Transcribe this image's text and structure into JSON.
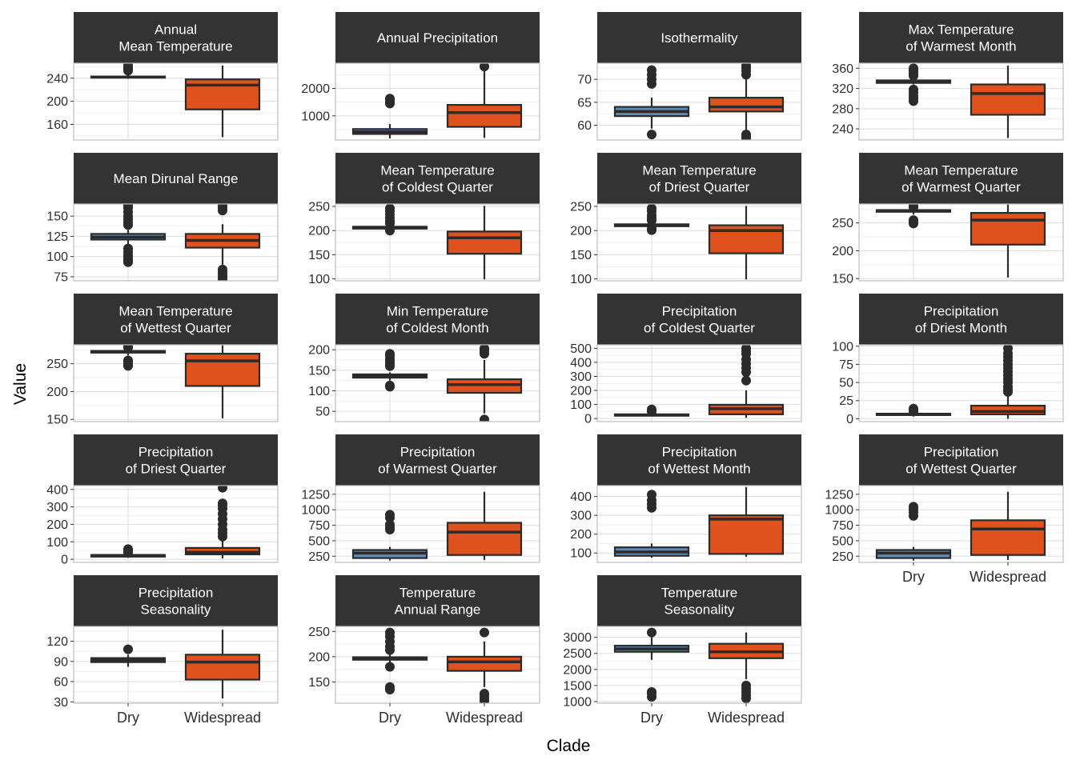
{
  "x_axis_title": "Clade",
  "y_axis_title": "Value",
  "colors": {
    "strip_bg": "#333333",
    "strip_text": "#ffffff",
    "panel_border": "#bdbdbd",
    "grid_major": "#dedede",
    "grid_minor": "#efefef",
    "box_outline": "#2b2b2b",
    "outlier": "#2b2b2b",
    "dry": "#5b8bbd",
    "widespread": "#df521e"
  },
  "chart_data": {
    "type": "boxplot",
    "categories": [
      "Dry",
      "Widespread"
    ],
    "facets": [
      {
        "title": [
          "Annual",
          "Mean Temperature"
        ],
        "ylim": [
          133,
          266
        ],
        "ticks": [
          160,
          200,
          240
        ],
        "minor": [
          140,
          180,
          220,
          260
        ],
        "boxes": [
          {
            "cat": "Dry",
            "q1": 241,
            "median": 242,
            "q3": 243,
            "lo": 239,
            "hi": 246,
            "outliers": [
              253,
              256,
              258,
              260,
              262
            ]
          },
          {
            "cat": "Widespread",
            "q1": 186,
            "median": 228,
            "q3": 238,
            "lo": 138,
            "hi": 262,
            "outliers": []
          }
        ]
      },
      {
        "title": [
          "Annual Precipitation"
        ],
        "ylim": [
          120,
          2920
        ],
        "ticks": [
          1000,
          2000
        ],
        "minor": [
          500,
          1500,
          2500
        ],
        "boxes": [
          {
            "cat": "Dry",
            "q1": 340,
            "median": 420,
            "q3": 520,
            "lo": 180,
            "hi": 700,
            "outliers": [
              1450,
              1520,
              1580,
              1630
            ]
          },
          {
            "cat": "Widespread",
            "q1": 600,
            "median": 1120,
            "q3": 1400,
            "lo": 200,
            "hi": 2800,
            "outliers": [
              2800
            ]
          }
        ]
      },
      {
        "title": [
          "Isothermality"
        ],
        "ylim": [
          56.8,
          73.5
        ],
        "ticks": [
          60,
          65,
          70
        ],
        "minor": [
          62.5,
          67.5,
          72.5
        ],
        "boxes": [
          {
            "cat": "Dry",
            "q1": 62.0,
            "median": 63.0,
            "q3": 64.0,
            "lo": 59.3,
            "hi": 66.0,
            "outliers": [
              58.0,
              69.0,
              70.0,
              71.0,
              72.0
            ]
          },
          {
            "cat": "Widespread",
            "q1": 63.0,
            "median": 64.0,
            "q3": 66.0,
            "lo": 59.0,
            "hi": 70.0,
            "outliers": [
              57.0,
              57.5,
              58.0,
              71.0,
              71.8,
              72.5,
              73.0
            ]
          }
        ]
      },
      {
        "title": [
          "Max Temperature",
          "of Warmest Month"
        ],
        "ylim": [
          218,
          370
        ],
        "ticks": [
          240,
          280,
          320,
          360
        ],
        "minor": [
          220,
          260,
          300,
          340
        ],
        "boxes": [
          {
            "cat": "Dry",
            "q1": 331,
            "median": 334,
            "q3": 336,
            "lo": 328,
            "hi": 340,
            "outliers": [
              295,
              300,
              305,
              312,
              318,
              345,
              348,
              352,
              356,
              360
            ]
          },
          {
            "cat": "Widespread",
            "q1": 268,
            "median": 310,
            "q3": 328,
            "lo": 222,
            "hi": 365,
            "outliers": []
          }
        ]
      },
      {
        "title": [
          "Mean Dirunal Range"
        ],
        "ylim": [
          70,
          165
        ],
        "ticks": [
          75,
          100,
          125,
          150
        ],
        "minor": [
          87.5,
          112.5,
          137.5
        ],
        "boxes": [
          {
            "cat": "Dry",
            "q1": 121,
            "median": 124,
            "q3": 128,
            "lo": 113,
            "hi": 133,
            "outliers": [
              93,
              96,
              99,
              102,
              106,
              110,
              139,
              142,
              146,
              150,
              155,
              160,
              163
            ]
          },
          {
            "cat": "Widespread",
            "q1": 111,
            "median": 120,
            "q3": 128,
            "lo": 90,
            "hi": 140,
            "outliers": [
              72,
              75,
              78,
              81,
              84,
              157,
              160,
              163
            ]
          }
        ]
      },
      {
        "title": [
          "Mean Temperature",
          "of Coldest Quarter"
        ],
        "ylim": [
          96,
          255
        ],
        "ticks": [
          100,
          150,
          200,
          250
        ],
        "minor": [
          125,
          175,
          225
        ],
        "boxes": [
          {
            "cat": "Dry",
            "q1": 204,
            "median": 206,
            "q3": 208,
            "lo": 202,
            "hi": 211,
            "outliers": [
              200,
              215,
              220,
              226,
              233,
              240,
              246
            ]
          },
          {
            "cat": "Widespread",
            "q1": 152,
            "median": 185,
            "q3": 198,
            "lo": 99,
            "hi": 251,
            "outliers": []
          }
        ]
      },
      {
        "title": [
          "Mean Temperature",
          "of Driest Quarter"
        ],
        "ylim": [
          96,
          255
        ],
        "ticks": [
          100,
          150,
          200,
          250
        ],
        "minor": [
          125,
          175,
          225
        ],
        "boxes": [
          {
            "cat": "Dry",
            "q1": 209,
            "median": 211,
            "q3": 213,
            "lo": 206,
            "hi": 216,
            "outliers": [
              201,
              204,
              221,
              226,
              232,
              240,
              246
            ]
          },
          {
            "cat": "Widespread",
            "q1": 153,
            "median": 200,
            "q3": 211,
            "lo": 99,
            "hi": 251,
            "outliers": []
          }
        ]
      },
      {
        "title": [
          "Mean Temperature",
          "of Warmest Quarter"
        ],
        "ylim": [
          146,
          284
        ],
        "ticks": [
          150,
          200,
          250
        ],
        "minor": [
          175,
          225,
          275
        ],
        "boxes": [
          {
            "cat": "Dry",
            "q1": 270,
            "median": 272,
            "q3": 273,
            "lo": 265,
            "hi": 276,
            "outliers": [
              249,
              252,
              255,
              278,
              280
            ]
          },
          {
            "cat": "Widespread",
            "q1": 211,
            "median": 255,
            "q3": 268,
            "lo": 152,
            "hi": 283,
            "outliers": []
          }
        ]
      },
      {
        "title": [
          "Mean Temperature",
          "of Wettest Quarter"
        ],
        "ylim": [
          146,
          284
        ],
        "ticks": [
          150,
          200,
          250
        ],
        "minor": [
          175,
          225,
          275
        ],
        "boxes": [
          {
            "cat": "Dry",
            "q1": 270,
            "median": 271,
            "q3": 273,
            "lo": 265,
            "hi": 276,
            "outliers": [
              246,
              249,
              252,
              256,
              279,
              282
            ]
          },
          {
            "cat": "Widespread",
            "q1": 210,
            "median": 255,
            "q3": 268,
            "lo": 152,
            "hi": 283,
            "outliers": []
          }
        ]
      },
      {
        "title": [
          "Min Temperature",
          "of Coldest Month"
        ],
        "ylim": [
          25,
          212
        ],
        "ticks": [
          50,
          100,
          150,
          200
        ],
        "minor": [
          75,
          125,
          175
        ],
        "boxes": [
          {
            "cat": "Dry",
            "q1": 132,
            "median": 136,
            "q3": 140,
            "lo": 125,
            "hi": 145,
            "outliers": [
              110,
              113,
              160,
              166,
              172,
              178,
              185,
              190
            ]
          },
          {
            "cat": "Widespread",
            "q1": 95,
            "median": 115,
            "q3": 128,
            "lo": 45,
            "hi": 175,
            "outliers": [
              30,
              190,
              195,
              200,
              203
            ]
          }
        ]
      },
      {
        "title": [
          "Precipitation",
          "of Coldest Quarter"
        ],
        "ylim": [
          -22,
          525
        ],
        "ticks": [
          0,
          100,
          200,
          300,
          400,
          500
        ],
        "minor": [
          50,
          150,
          250,
          350,
          450
        ],
        "boxes": [
          {
            "cat": "Dry",
            "q1": 20,
            "median": 24,
            "q3": 30,
            "lo": 15,
            "hi": 40,
            "outliers": [
              50,
              55,
              60,
              65
            ]
          },
          {
            "cat": "Widespread",
            "q1": 30,
            "median": 70,
            "q3": 98,
            "lo": 5,
            "hi": 200,
            "outliers": [
              270,
              330,
              360,
              390,
              420,
              460,
              480,
              500
            ]
          }
        ]
      },
      {
        "title": [
          "Precipitation",
          "of Driest Month"
        ],
        "ylim": [
          -4,
          102
        ],
        "ticks": [
          0,
          25,
          50,
          75,
          100
        ],
        "minor": [
          12.5,
          37.5,
          62.5,
          87.5
        ],
        "boxes": [
          {
            "cat": "Dry",
            "q1": 5,
            "median": 6,
            "q3": 7,
            "lo": 3,
            "hi": 9,
            "outliers": [
              10,
              12,
              14
            ]
          },
          {
            "cat": "Widespread",
            "q1": 6,
            "median": 10,
            "q3": 18,
            "lo": 0,
            "hi": 35,
            "outliers": [
              37,
              40,
              44,
              50,
              55,
              60,
              65,
              70,
              75,
              80,
              85,
              90,
              97
            ]
          }
        ]
      },
      {
        "title": [
          "Precipitation",
          "of Driest Quarter"
        ],
        "ylim": [
          -18,
          422
        ],
        "ticks": [
          0,
          100,
          200,
          300,
          400
        ],
        "minor": [
          50,
          150,
          250,
          350
        ],
        "boxes": [
          {
            "cat": "Dry",
            "q1": 15,
            "median": 20,
            "q3": 25,
            "lo": 8,
            "hi": 35,
            "outliers": [
              40,
              50,
              58
            ]
          },
          {
            "cat": "Widespread",
            "q1": 28,
            "median": 40,
            "q3": 65,
            "lo": 5,
            "hi": 120,
            "outliers": [
              130,
              150,
              170,
              200,
              230,
              260,
              290,
              310,
              320,
              410
            ]
          }
        ]
      },
      {
        "title": [
          "Precipitation",
          "of Warmest Quarter"
        ],
        "ylim": [
          150,
          1390
        ],
        "ticks": [
          250,
          500,
          750,
          1000,
          1250
        ],
        "minor": [
          375,
          625,
          875,
          1125
        ],
        "boxes": [
          {
            "cat": "Dry",
            "q1": 220,
            "median": 300,
            "q3": 350,
            "lo": 180,
            "hi": 400,
            "outliers": [
              680,
              720,
              760,
              870,
              920
            ]
          },
          {
            "cat": "Widespread",
            "q1": 270,
            "median": 640,
            "q3": 790,
            "lo": 190,
            "hi": 1290,
            "outliers": []
          }
        ]
      },
      {
        "title": [
          "Precipitation",
          "of Wettest Month"
        ],
        "ylim": [
          50,
          458
        ],
        "ticks": [
          100,
          200,
          300,
          400
        ],
        "minor": [
          150,
          250,
          350
        ],
        "boxes": [
          {
            "cat": "Dry",
            "q1": 85,
            "median": 105,
            "q3": 130,
            "lo": 75,
            "hi": 150,
            "outliers": [
              340,
              360,
              380,
              410
            ]
          },
          {
            "cat": "Widespread",
            "q1": 95,
            "median": 280,
            "q3": 300,
            "lo": 80,
            "hi": 450,
            "outliers": []
          }
        ]
      },
      {
        "title": [
          "Precipitation",
          "of Wettest Quarter"
        ],
        "ylim": [
          150,
          1390
        ],
        "ticks": [
          250,
          500,
          750,
          1000,
          1250
        ],
        "minor": [
          375,
          625,
          875,
          1125
        ],
        "boxes": [
          {
            "cat": "Dry",
            "q1": 220,
            "median": 300,
            "q3": 350,
            "lo": 180,
            "hi": 400,
            "outliers": [
              900,
              960,
              1010,
              1050
            ]
          },
          {
            "cat": "Widespread",
            "q1": 270,
            "median": 690,
            "q3": 830,
            "lo": 190,
            "hi": 1290,
            "outliers": []
          }
        ]
      },
      {
        "title": [
          "Precipitation",
          "Seasonality"
        ],
        "ylim": [
          28,
          142
        ],
        "ticks": [
          30,
          60,
          90,
          120
        ],
        "minor": [
          45,
          75,
          105,
          135
        ],
        "boxes": [
          {
            "cat": "Dry",
            "q1": 89,
            "median": 92,
            "q3": 95,
            "lo": 82,
            "hi": 100,
            "outliers": [
              108
            ]
          },
          {
            "cat": "Widespread",
            "q1": 63,
            "median": 89,
            "q3": 100,
            "lo": 35,
            "hi": 137,
            "outliers": []
          }
        ]
      },
      {
        "title": [
          "Temperature",
          "Annual Range"
        ],
        "ylim": [
          108,
          260
        ],
        "ticks": [
          150,
          200,
          250
        ],
        "minor": [
          125,
          175,
          225
        ],
        "boxes": [
          {
            "cat": "Dry",
            "q1": 194,
            "median": 197,
            "q3": 199,
            "lo": 188,
            "hi": 206,
            "outliers": [
              135,
              140,
              180,
              213,
              220,
              230,
              240,
              248
            ]
          },
          {
            "cat": "Widespread",
            "q1": 172,
            "median": 190,
            "q3": 200,
            "lo": 140,
            "hi": 230,
            "outliers": [
              112,
              117,
              122,
              127,
              248
            ]
          }
        ]
      },
      {
        "title": [
          "Temperature",
          "Seasonality"
        ],
        "ylim": [
          950,
          3340
        ],
        "ticks": [
          1000,
          1500,
          2000,
          2500,
          3000
        ],
        "minor": [
          1250,
          1750,
          2250,
          2750,
          3250
        ],
        "boxes": [
          {
            "cat": "Dry",
            "q1": 2550,
            "median": 2640,
            "q3": 2740,
            "lo": 2300,
            "hi": 3000,
            "outliers": [
              1150,
              1250,
              1300,
              3150
            ]
          },
          {
            "cat": "Widespread",
            "q1": 2350,
            "median": 2550,
            "q3": 2800,
            "lo": 1700,
            "hi": 3150,
            "outliers": [
              1100,
              1200,
              1300,
              1400,
              1500
            ]
          }
        ]
      }
    ]
  }
}
